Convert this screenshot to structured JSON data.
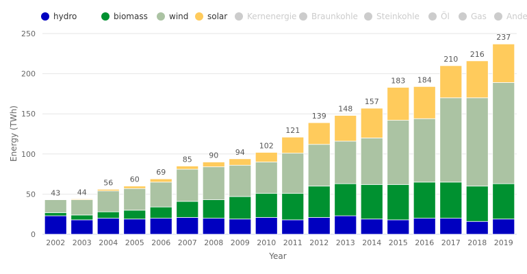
{
  "chart_data": {
    "type": "bar",
    "stacked": true,
    "title": "",
    "xlabel": "Year",
    "ylabel": "Energy (TWh)",
    "ylim": [
      0,
      250
    ],
    "yticks": [
      0,
      50,
      100,
      150,
      200,
      250
    ],
    "grid": true,
    "legend_position": "top",
    "categories": [
      "2002",
      "2003",
      "2004",
      "2005",
      "2006",
      "2007",
      "2008",
      "2009",
      "2010",
      "2011",
      "2012",
      "2013",
      "2014",
      "2015",
      "2016",
      "2017",
      "2018",
      "2019"
    ],
    "series": [
      {
        "name": "hydro",
        "color": "#0000c0",
        "values": [
          23,
          18,
          20,
          19,
          20,
          21,
          20,
          19,
          21,
          18,
          21,
          23,
          19,
          18,
          20,
          20,
          16,
          19
        ]
      },
      {
        "name": "biomass",
        "color": "#009130",
        "values": [
          4,
          6,
          8,
          11,
          14,
          20,
          23,
          28,
          30,
          33,
          39,
          40,
          43,
          44,
          45,
          45,
          44,
          44
        ]
      },
      {
        "name": "wind",
        "color": "#abc3a3",
        "values": [
          16,
          19,
          26,
          27,
          31,
          40,
          41,
          39,
          39,
          50,
          52,
          53,
          58,
          80,
          79,
          105,
          110,
          126
        ]
      },
      {
        "name": "solar",
        "color": "#ffcb5c",
        "values": [
          0,
          1,
          2,
          3,
          4,
          4,
          6,
          8,
          12,
          20,
          27,
          32,
          37,
          41,
          40,
          40,
          46,
          48
        ]
      }
    ],
    "totals": [
      43,
      44,
      56,
      60,
      69,
      85,
      90,
      94,
      102,
      121,
      139,
      148,
      157,
      183,
      184,
      210,
      216,
      237
    ],
    "legend": [
      {
        "name": "hydro",
        "color": "#0000c0",
        "active": true
      },
      {
        "name": "biomass",
        "color": "#009130",
        "active": true
      },
      {
        "name": "wind",
        "color": "#abc3a3",
        "active": true
      },
      {
        "name": "solar",
        "color": "#ffcb5c",
        "active": true
      },
      {
        "name": "Kernenergie",
        "color": "#cccccc",
        "active": false
      },
      {
        "name": "Braunkohle",
        "color": "#cccccc",
        "active": false
      },
      {
        "name": "Steinkohle",
        "color": "#cccccc",
        "active": false
      },
      {
        "name": "Öl",
        "color": "#cccccc",
        "active": false
      },
      {
        "name": "Gas",
        "color": "#cccccc",
        "active": false
      },
      {
        "name": "Andere",
        "color": "#cccccc",
        "active": false
      }
    ]
  }
}
